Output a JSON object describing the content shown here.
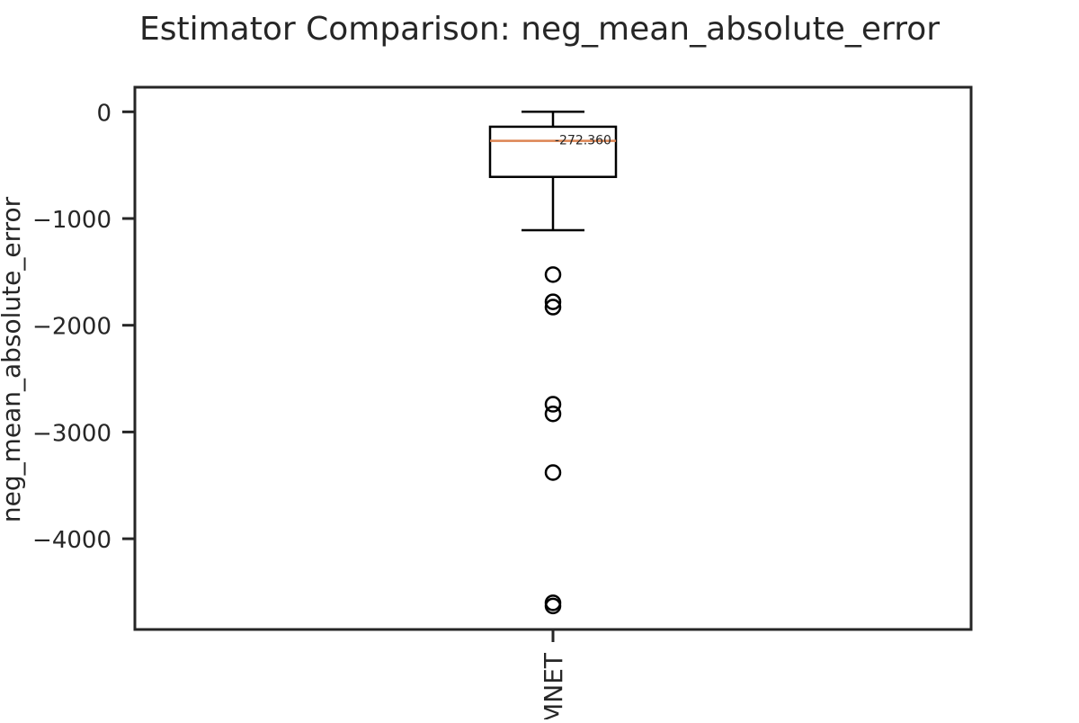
{
  "chart_data": {
    "type": "box",
    "title": "Estimator Comparison: neg_mean_absolute_error",
    "xlabel": "",
    "ylabel": "neg_mean_absolute_error",
    "ylim": [
      -4850,
      230
    ],
    "yticks": [
      0,
      -1000,
      -2000,
      -3000,
      -4000
    ],
    "ytick_labels": [
      "0",
      "−1000",
      "−2000",
      "−3000",
      "−4000"
    ],
    "categories": [
      "ELASTICNET"
    ],
    "category_label_visible": "MNET",
    "boxes": [
      {
        "category": "ELASTICNET",
        "whisker_high": 0,
        "q3": -140,
        "median": -272.36,
        "q1": -610,
        "whisker_low": -1110,
        "median_label": "-272.360",
        "outliers": [
          -1525,
          -1780,
          -1830,
          -2740,
          -2830,
          -3380,
          -4600,
          -4630
        ]
      }
    ],
    "grid": false,
    "colors": {
      "box": "#000000",
      "median": "#dd8452",
      "axes": "#262626"
    }
  }
}
